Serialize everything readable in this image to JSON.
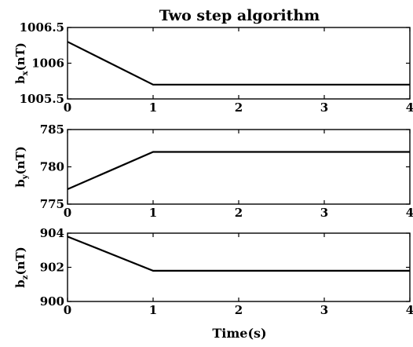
{
  "title": "Two step algorithm",
  "xlabel": "Time(s)",
  "chart_data": [
    {
      "type": "line",
      "title": "Two step algorithm",
      "ylabel": {
        "base": "b",
        "sub": "x",
        "rest": "(nT)"
      },
      "xlim": [
        0,
        4
      ],
      "ylim": [
        1005.5,
        1006.5
      ],
      "xticks": [
        0,
        1,
        2,
        3,
        4
      ],
      "yticks": [
        1005.5,
        1006,
        1006.5
      ],
      "ytick_labels": [
        "1005.5",
        "1006",
        "1006.5"
      ],
      "grid": false,
      "series": [
        {
          "x": [
            0,
            1,
            4
          ],
          "y": [
            1006.3,
            1005.7,
            1005.7
          ],
          "color": "#000000"
        }
      ]
    },
    {
      "type": "line",
      "ylabel": {
        "base": "b",
        "sub": "y",
        "rest": "(nT)"
      },
      "xlim": [
        0,
        4
      ],
      "ylim": [
        775,
        785
      ],
      "xticks": [
        0,
        1,
        2,
        3,
        4
      ],
      "yticks": [
        775,
        780,
        785
      ],
      "ytick_labels": [
        "775",
        "780",
        "785"
      ],
      "grid": false,
      "series": [
        {
          "x": [
            0,
            1,
            4
          ],
          "y": [
            777,
            782,
            782
          ],
          "color": "#000000"
        }
      ]
    },
    {
      "type": "line",
      "ylabel": {
        "base": "b",
        "sub": "z",
        "rest": "(nT)"
      },
      "xlabel": "Time(s)",
      "xlim": [
        0,
        4
      ],
      "ylim": [
        900,
        904
      ],
      "xticks": [
        0,
        1,
        2,
        3,
        4
      ],
      "yticks": [
        900,
        902,
        904
      ],
      "ytick_labels": [
        "900",
        "902",
        "904"
      ],
      "grid": false,
      "series": [
        {
          "x": [
            0,
            1,
            4
          ],
          "y": [
            903.8,
            901.8,
            901.8
          ],
          "color": "#000000"
        }
      ]
    }
  ]
}
